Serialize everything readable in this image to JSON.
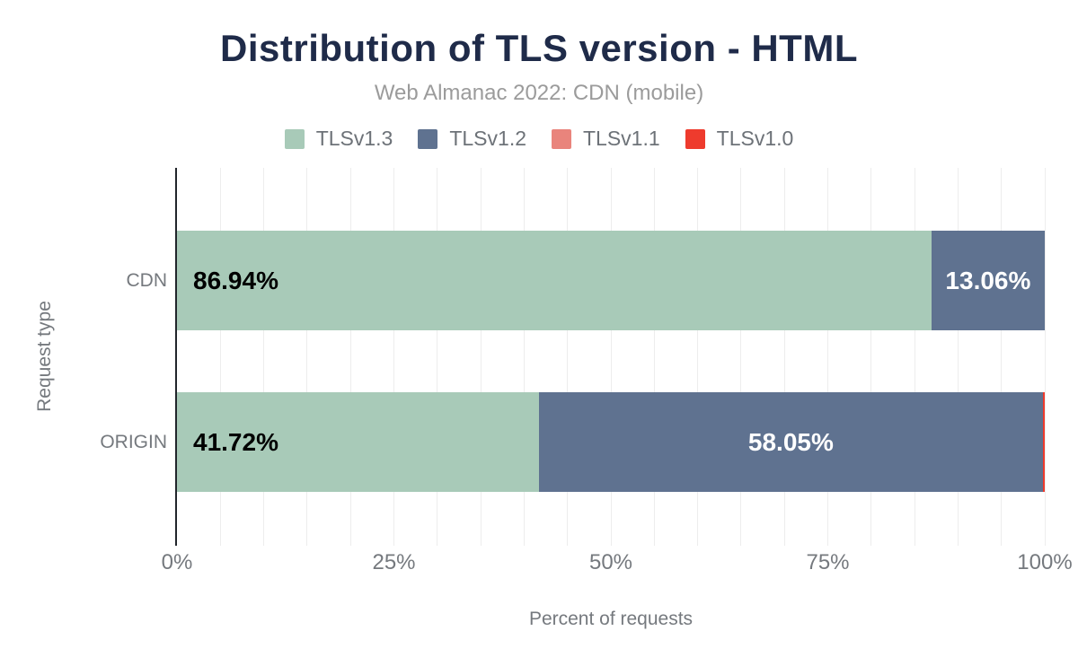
{
  "title": "Distribution of TLS version - HTML",
  "subtitle": "Web Almanac 2022: CDN (mobile)",
  "colors": {
    "title": "#1f2b49",
    "subtitle": "#9b9b9b",
    "axis_text": "#75797e",
    "legend_text": "#6d7278",
    "axis_line": "#21252b",
    "gridline": "#ededed",
    "bar_label_dark": "#000000",
    "bar_label_light": "#ffffff",
    "background": "#ffffff"
  },
  "chart_data": {
    "type": "bar",
    "orientation": "horizontal",
    "stacked": true,
    "unit": "%",
    "title": "Distribution of TLS version - HTML",
    "subtitle": "Web Almanac 2022: CDN (mobile)",
    "categories": [
      "CDN",
      "ORIGIN"
    ],
    "series": [
      {
        "name": "TLSv1.3",
        "color": "#a8cab8",
        "values": [
          86.94,
          41.72
        ]
      },
      {
        "name": "TLSv1.2",
        "color": "#5f7290",
        "values": [
          13.06,
          58.05
        ]
      },
      {
        "name": "TLSv1.1",
        "color": "#e9847c",
        "values": [
          0,
          0.01
        ]
      },
      {
        "name": "TLSv1.0",
        "color": "#ee3b2d",
        "values": [
          0,
          0.22
        ]
      }
    ],
    "bar_labels": [
      [
        "86.94%",
        "13.06%",
        null,
        null
      ],
      [
        "41.72%",
        "58.05%",
        null,
        null
      ]
    ],
    "xlabel": "Percent of requests",
    "ylabel": "Request type",
    "xlim": [
      0,
      100
    ],
    "x_ticks": [
      {
        "value": 0,
        "label": "0%"
      },
      {
        "value": 25,
        "label": "25%"
      },
      {
        "value": 50,
        "label": "50%"
      },
      {
        "value": 75,
        "label": "75%"
      },
      {
        "value": 100,
        "label": "100%"
      }
    ],
    "gridline_step": 5,
    "grid": true,
    "legend_position": "top"
  }
}
